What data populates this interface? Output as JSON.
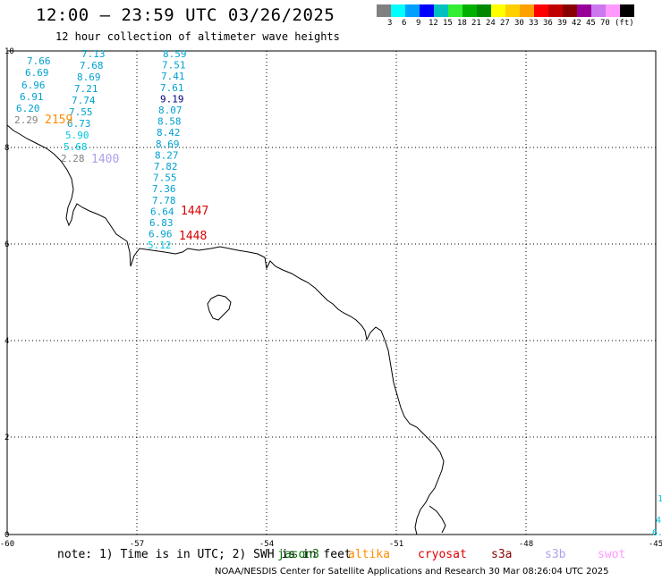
{
  "title": "12:00 – 23:59 UTC 03/26/2025",
  "subtitle": "12 hour collection of altimeter wave heights",
  "colorbar": {
    "colors": [
      "#808080",
      "#00ffff",
      "#00a0ff",
      "#0000ff",
      "#00c0c0",
      "#33ee33",
      "#00b000",
      "#008800",
      "#ffff00",
      "#ffd000",
      "#ffa000",
      "#ff0000",
      "#c00000",
      "#880000",
      "#990099",
      "#cc77ee",
      "#ff99ff",
      "#000000"
    ],
    "labels": [
      "3",
      "6",
      "9",
      "12",
      "15",
      "18",
      "21",
      "24",
      "27",
      "30",
      "33",
      "36",
      "39",
      "42",
      "45",
      "70",
      "(ft)"
    ]
  },
  "axes": {
    "x_ticks": [
      "-60",
      "-57",
      "-54",
      "-51",
      "-48",
      "-45"
    ],
    "y_ticks": [
      "10",
      "8",
      "6",
      "4",
      "2",
      "0"
    ]
  },
  "tracks": [
    {
      "values": [
        "7.66",
        "6.69",
        "6.96",
        "6.91",
        "6.20",
        "2.29"
      ],
      "colors": [
        "#00a0d0",
        "#00a0d0",
        "#00a0d0",
        "#00a0d0",
        "#00a0d0",
        "#808080"
      ]
    },
    {
      "values": [
        "7.13",
        "7.68",
        "8.69",
        "7.21",
        "7.74",
        "7.55",
        "6.73",
        "5.90",
        "5.68",
        "2.28"
      ],
      "colors": [
        "#00a0d0",
        "#00a0d0",
        "#00a0d0",
        "#00a0d0",
        "#00a0d0",
        "#00a0d0",
        "#00a0d0",
        "#00c8e0",
        "#00c8e0",
        "#808080"
      ]
    },
    {
      "values": [
        "8.59",
        "7.51",
        "7.41",
        "7.61",
        "9.19",
        "8.07",
        "8.58",
        "8.42",
        "8.69",
        "8.27",
        "7.82",
        "7.55",
        "7.36",
        "7.78",
        "6.64",
        "6.83",
        "6.96",
        "5.12"
      ],
      "colors": [
        "#00a0d0",
        "#00a0d0",
        "#00a0d0",
        "#00a0d0",
        "#000080",
        "#00a0d0",
        "#00a0d0",
        "#00a0d0",
        "#00a0d0",
        "#00a0d0",
        "#00a0d0",
        "#00a0d0",
        "#00a0d0",
        "#00a0d0",
        "#00a0d0",
        "#00a0d0",
        "#00a0d0",
        "#00c8e0"
      ]
    }
  ],
  "time_labels": [
    {
      "text": "2159",
      "color": "#ff8c00"
    },
    {
      "text": "1400",
      "color": "#b0a0ee"
    },
    {
      "text": "1447",
      "color": "#dd0000"
    },
    {
      "text": "1448",
      "color": "#dd0000"
    }
  ],
  "edge_values": [
    "1",
    "4",
    "6."
  ],
  "note": "note: 1) Time is in UTC; 2) SWH is in feet",
  "satellites": [
    {
      "name": "jason3",
      "color": "#007000"
    },
    {
      "name": "altika",
      "color": "#ff8c00"
    },
    {
      "name": "cryosat",
      "color": "#dd0000"
    },
    {
      "name": "s3a",
      "color": "#880000"
    },
    {
      "name": "s3b",
      "color": "#b0a0ee"
    },
    {
      "name": "swot",
      "color": "#ff99ff"
    }
  ],
  "credit": "NOAA/NESDIS Center for Satellite Applications and Research    30 Mar 08:26:04 UTC 2025"
}
